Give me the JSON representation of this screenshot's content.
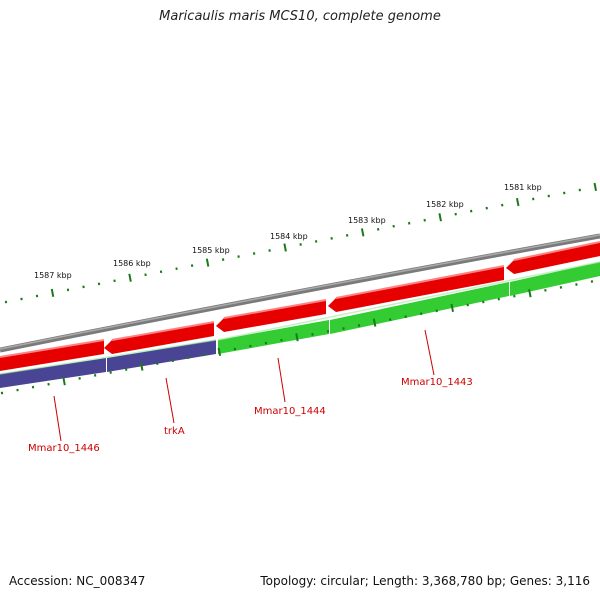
{
  "title": "Maricaulis maris MCS10, complete genome",
  "footer": {
    "accession": "Accession: NC_008347",
    "summary": "Topology: circular; Length: 3,368,780 bp; Genes: 3,116"
  },
  "colors": {
    "backbone": "#888888",
    "forward_gene": "#e60000",
    "reverse_gene_green": "#33cc33",
    "reverse_gene_blue": "#4a4494",
    "tick": "#1a7a1a",
    "label": "#cc0000"
  },
  "scale_labels": [
    "1581 kbp",
    "1582 kbp",
    "1583 kbp",
    "1584 kbp",
    "1585 kbp",
    "1586 kbp",
    "1587 kbp"
  ],
  "gene_labels": [
    "Mmar10_1443",
    "Mmar10_1444",
    "trkA",
    "Mmar10_1446"
  ]
}
